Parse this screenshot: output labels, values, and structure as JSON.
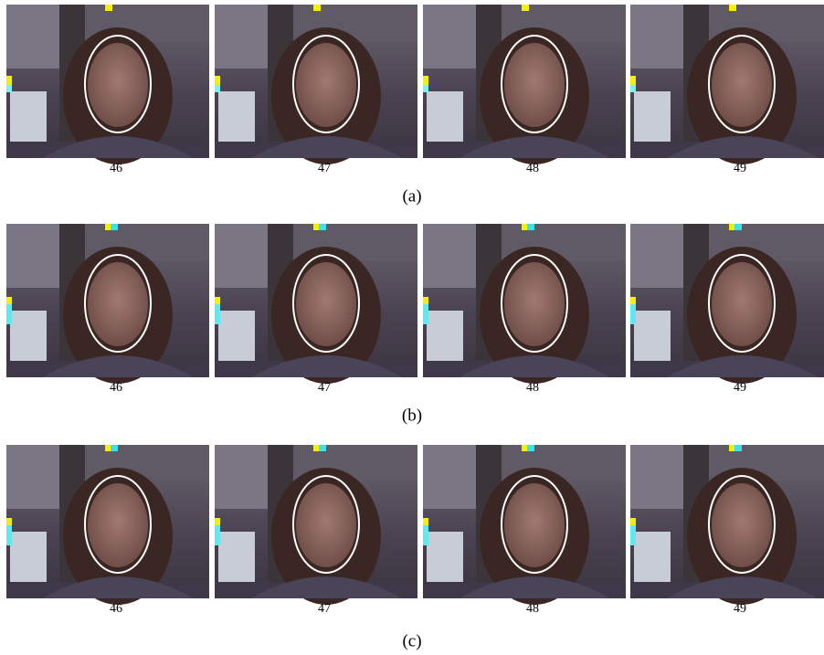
{
  "rows": [
    {
      "frames": [
        "46",
        "47",
        "48",
        "49"
      ],
      "caption": "(a)"
    },
    {
      "frames": [
        "46",
        "47",
        "48",
        "49"
      ],
      "caption": "(b)"
    },
    {
      "frames": [
        "46",
        "47",
        "48",
        "49"
      ],
      "caption": "(c)"
    }
  ]
}
